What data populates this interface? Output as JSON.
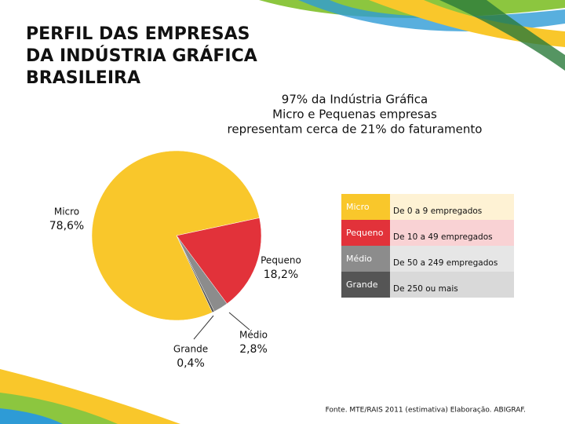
{
  "chart_data": {
    "type": "pie",
    "title": [
      "PERFIL DAS EMPRESAS",
      "DA INDÚSTRIA GRÁFICA",
      "BRASILEIRA"
    ],
    "subtitle": [
      "97% da Indústria Gráfica",
      "Micro e Pequenas empresas",
      "representam cerca  de 21% do faturamento"
    ],
    "categories": [
      "Micro",
      "Pequeno",
      "Médio",
      "Grande"
    ],
    "values": [
      78.6,
      18.2,
      2.8,
      0.4
    ],
    "value_labels": [
      "78,6%",
      "18,2%",
      "2,8%",
      "0,4%"
    ],
    "colors": [
      "#F9C72B",
      "#E2323A",
      "#8C8C8C",
      "#555555"
    ],
    "legend": {
      "names": [
        "Micro",
        "Pequeno",
        "Médio",
        "Grande"
      ],
      "descriptions": [
        "De 0 a 9 empregados",
        "De 10 a 49 empregados",
        "De 50 a 249 empregados",
        "De 250 ou mais"
      ]
    },
    "source": "Fonte. MTE/RAIS 2011 (estimativa)  Elaboração. ABIGRAF."
  }
}
